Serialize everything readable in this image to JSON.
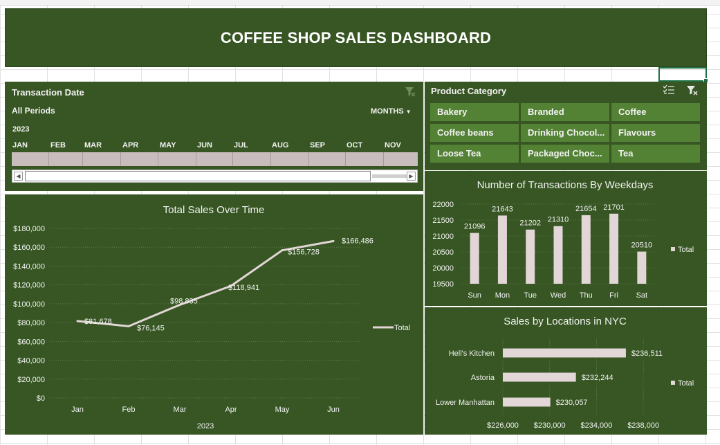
{
  "dashboard": {
    "title": "COFFEE SHOP SALES DASHBOARD"
  },
  "colors": {
    "panel": "#375623",
    "slicer_item": "#548235",
    "bar": "#e2d6d6",
    "line": "#e2d6d6",
    "text": "#f2f2f2"
  },
  "timeline": {
    "header": "Transaction Date",
    "periods": "All Periods",
    "level": "MONTHS",
    "year": "2023",
    "months": [
      "JAN",
      "FEB",
      "MAR",
      "APR",
      "MAY",
      "JUN",
      "JUL",
      "AUG",
      "SEP",
      "OCT",
      "NOV"
    ],
    "filter_icon": "clear-filter-icon",
    "dropdown_icon": "chevron-down-icon"
  },
  "slicer": {
    "header": "Product Category",
    "multiselect_icon": "multi-select-icon",
    "clear_icon": "clear-filter-icon",
    "items": [
      "Bakery",
      "Branded",
      "Coffee",
      "Coffee beans",
      "Drinking Chocol...",
      "Flavours",
      "Loose Tea",
      "Packaged Choc...",
      "Tea"
    ]
  },
  "chart_data": [
    {
      "type": "line",
      "title": "Total Sales Over Time",
      "categories": [
        "Jan",
        "Feb",
        "Mar",
        "Apr",
        "May",
        "Jun"
      ],
      "xlabel": "2023",
      "series": [
        {
          "name": "Total",
          "values": [
            81678,
            76145,
            98835,
            118941,
            156728,
            166486
          ]
        }
      ],
      "data_labels": [
        "$81,678",
        "$76,145",
        "$98,835",
        "$118,941",
        "$156,728",
        "$166,486"
      ],
      "ylim": [
        0,
        180000
      ],
      "y_ticks": [
        "$0",
        "$20,000",
        "$40,000",
        "$60,000",
        "$80,000",
        "$100,000",
        "$120,000",
        "$140,000",
        "$160,000",
        "$180,000"
      ],
      "grid": true,
      "legend": "right"
    },
    {
      "type": "bar",
      "title": "Number of Transactions By Weekdays",
      "categories": [
        "Sun",
        "Mon",
        "Tue",
        "Wed",
        "Thu",
        "Fri",
        "Sat"
      ],
      "series": [
        {
          "name": "Total",
          "values": [
            21096,
            21643,
            21202,
            21310,
            21654,
            21701,
            20510
          ]
        }
      ],
      "ylim": [
        19500,
        22000
      ],
      "y_ticks": [
        "19500",
        "20000",
        "20500",
        "21000",
        "21500",
        "22000"
      ],
      "grid": true,
      "legend": "right"
    },
    {
      "type": "bar",
      "orientation": "horizontal",
      "title": "Sales by Locations in NYC",
      "categories": [
        "Hell's Kitchen",
        "Astoria",
        "Lower Manhattan"
      ],
      "series": [
        {
          "name": "Total",
          "values": [
            236511,
            232244,
            230057
          ]
        }
      ],
      "data_labels": [
        "$236,511",
        "$232,244",
        "$230,057"
      ],
      "xlim": [
        226000,
        240000
      ],
      "x_ticks": [
        "$226,000",
        "$230,000",
        "$234,000",
        "$238,000"
      ],
      "x_tick_values": [
        226000,
        230000,
        234000,
        238000
      ],
      "grid": true,
      "legend": "right"
    }
  ]
}
